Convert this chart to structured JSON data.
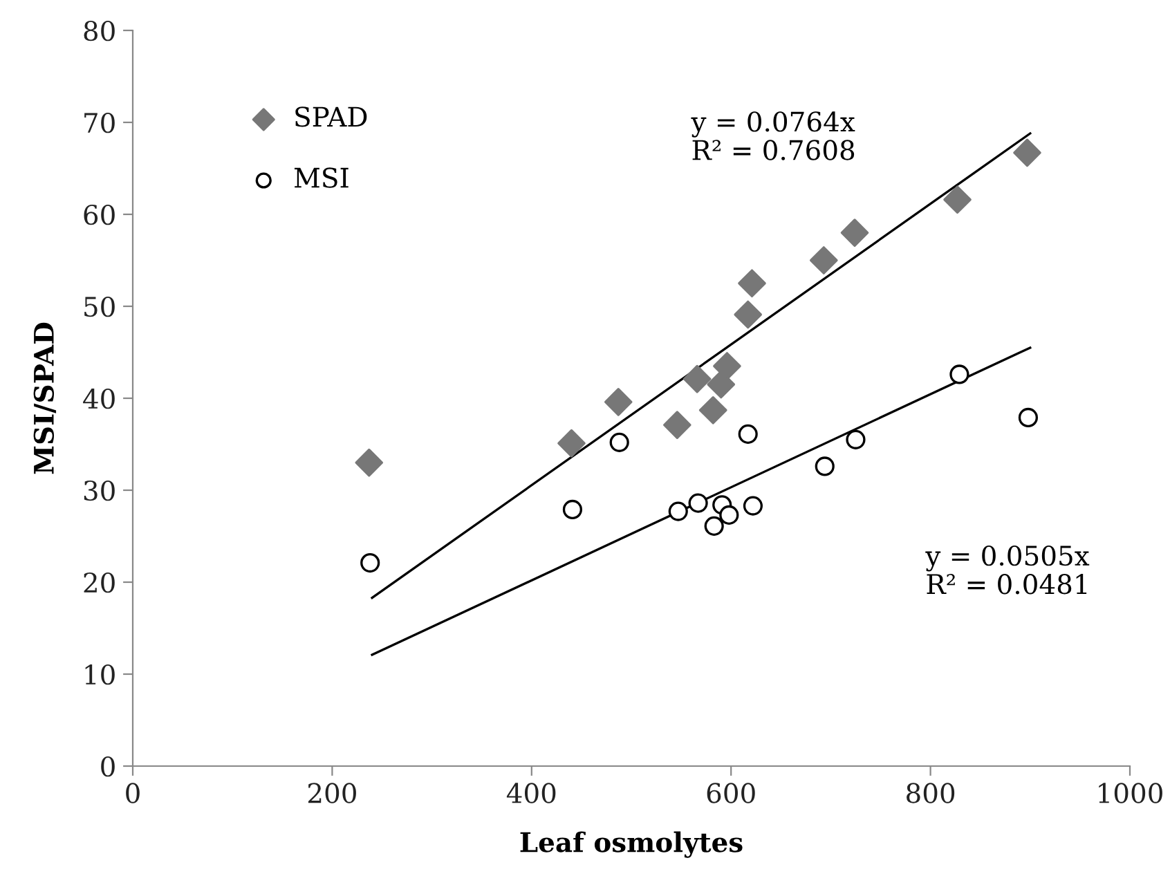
{
  "chart_data": {
    "type": "scatter",
    "xlabel": "Leaf osmolytes",
    "ylabel": "MSI/SPAD",
    "xlim": [
      0,
      1000
    ],
    "ylim": [
      0,
      80
    ],
    "xticks": [
      0,
      200,
      400,
      600,
      800,
      1000
    ],
    "yticks": [
      0,
      10,
      20,
      30,
      40,
      50,
      60,
      70,
      80
    ],
    "grid": false,
    "legend": "top left",
    "series": [
      {
        "name": "SPAD",
        "color": "#777777",
        "marker": "diamond",
        "x": [
          237,
          440,
          487,
          546,
          566,
          582,
          590,
          596,
          617,
          621,
          693,
          724,
          827,
          897
        ],
        "values": [
          33.0,
          35.1,
          39.6,
          37.1,
          42.1,
          38.7,
          41.5,
          43.5,
          49.1,
          52.5,
          55.0,
          58.0,
          61.6,
          66.7
        ]
      },
      {
        "name": "MSI",
        "color": "#000000",
        "marker": "circle",
        "x": [
          238,
          441,
          488,
          547,
          567,
          583,
          591,
          598,
          617,
          622,
          694,
          725,
          829,
          898
        ],
        "values": [
          22.1,
          27.9,
          35.2,
          27.7,
          28.6,
          26.1,
          28.4,
          27.3,
          36.1,
          28.3,
          32.6,
          35.5,
          42.6,
          37.9
        ]
      },
      {
        "type": "line",
        "color": "#000000",
        "x": [
          240,
          900
        ],
        "values": [
          18.3,
          68.8
        ]
      },
      {
        "type": "line",
        "color": "#000000",
        "x": [
          240,
          900
        ],
        "values": [
          12.1,
          45.5
        ]
      }
    ],
    "annotations": [
      "y = 0.0764x\nR² = 0.7608",
      "y = 0.0505x\nR² = 0.0481"
    ]
  }
}
